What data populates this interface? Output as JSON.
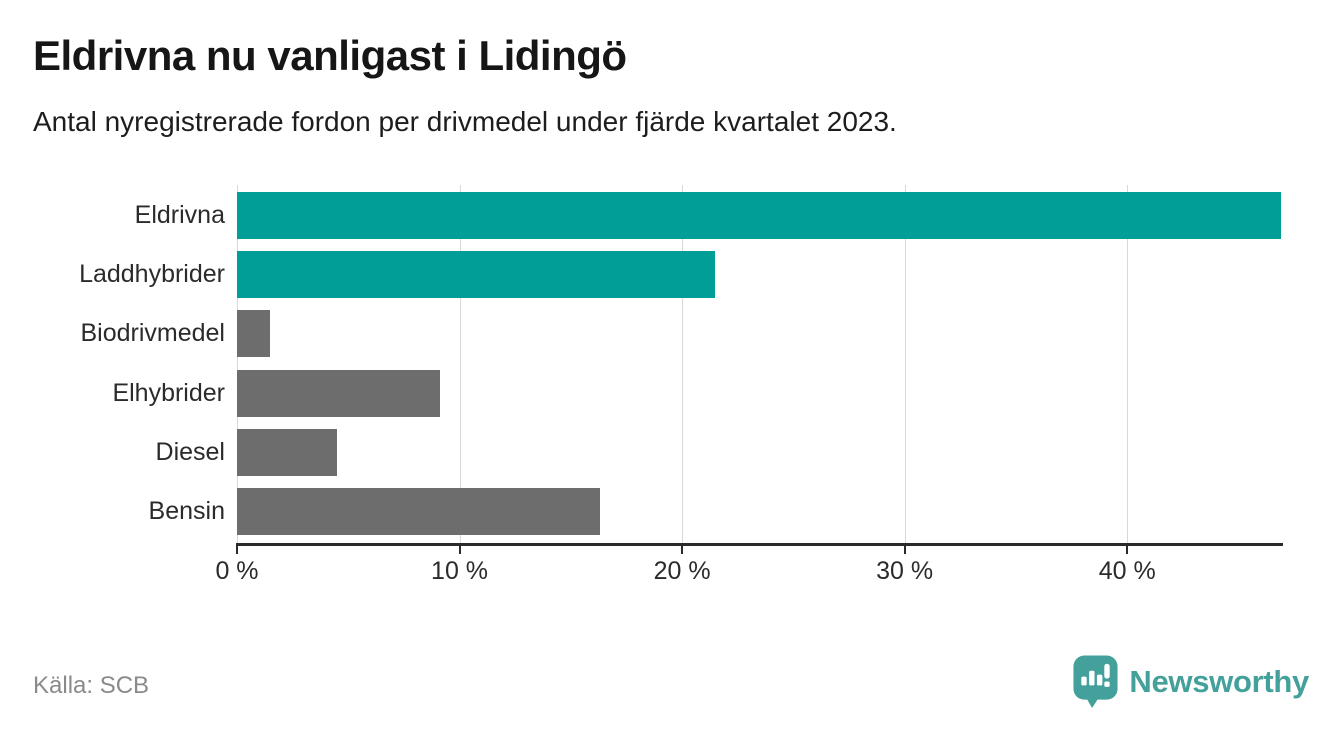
{
  "header": {
    "title": "Eldrivna nu vanligast i Lidingö",
    "subtitle": "Antal nyregistrerade fordon per drivmedel under fjärde kvartalet 2023."
  },
  "chart_data": {
    "type": "bar",
    "orientation": "horizontal",
    "title": "Eldrivna nu vanligast i Lidingö",
    "subtitle": "Antal nyregistrerade fordon per drivmedel under fjärde kvartalet 2023.",
    "categories": [
      "Eldrivna",
      "Laddhybrider",
      "Biodrivmedel",
      "Elhybrider",
      "Diesel",
      "Bensin"
    ],
    "values": [
      46.9,
      21.5,
      1.5,
      9.1,
      4.5,
      16.3
    ],
    "unit": "%",
    "bar_colors": [
      "#009e96",
      "#009e96",
      "#6d6d6d",
      "#6d6d6d",
      "#6d6d6d",
      "#6d6d6d"
    ],
    "xlabel": "",
    "ylabel": "",
    "xlim": [
      0,
      47
    ],
    "x_ticks": [
      0,
      10,
      20,
      30,
      40
    ],
    "x_tick_labels": [
      "0 %",
      "10 %",
      "20 %",
      "30 %",
      "40 %"
    ],
    "grid": true,
    "legend": false
  },
  "footer": {
    "source": "Källa: SCB",
    "brand": "Newsworthy"
  },
  "colors": {
    "accent_teal": "#009e96",
    "bar_gray": "#6d6d6d",
    "brand_teal": "#44a09a",
    "grid": "#d9d9d9",
    "axis": "#2b2b2b",
    "source_text": "#8a8a8a"
  }
}
